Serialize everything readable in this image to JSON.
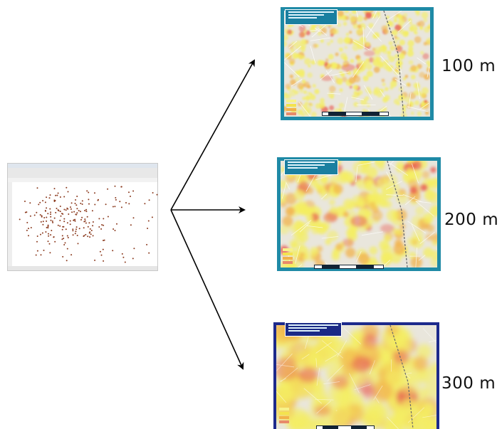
{
  "diagram": {
    "source": {
      "kind": "point-data GIS screenshot"
    },
    "outputs": [
      {
        "id": "map-100",
        "label": "100 m"
      },
      {
        "id": "map-200",
        "label": "200 m"
      },
      {
        "id": "map-300",
        "label": "300 m"
      }
    ]
  },
  "colors": {
    "panel_teal": "#1f8aa6",
    "panel_navy": "#1d2a8c",
    "heat_low": "#f4ee62",
    "heat_mid": "#f2b24a",
    "heat_high": "#e85a50",
    "basemap": "#e9e6dc",
    "points": "#8b3a1e",
    "arrow": "#000000"
  }
}
